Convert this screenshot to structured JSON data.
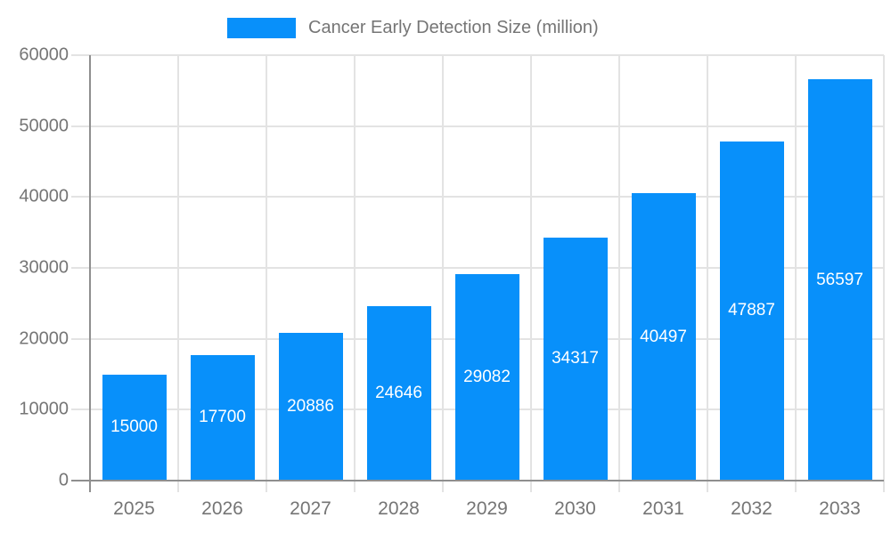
{
  "legend": {
    "label": "Cancer Early Detection Size (million)"
  },
  "chart_data": {
    "type": "bar",
    "title": "Cancer Early Detection Size (million)",
    "series_name": "Cancer Early Detection Size (million)",
    "categories": [
      "2025",
      "2026",
      "2027",
      "2028",
      "2029",
      "2030",
      "2031",
      "2032",
      "2033"
    ],
    "values": [
      15000,
      17700,
      20886,
      24646,
      29082,
      34317,
      40497,
      47887,
      56597
    ],
    "xlabel": "",
    "ylabel": "",
    "ylim": [
      0,
      60000
    ],
    "ytick_step": 10000,
    "ytick_labels": [
      "0",
      "10000",
      "20000",
      "30000",
      "40000",
      "50000",
      "60000"
    ],
    "grid": true,
    "legend_position": "top",
    "value_labels": "inside-center",
    "colors": {
      "bar": "#0890fa",
      "bar_value_text": "#ffffff",
      "axis_text": "#757575",
      "grid_line": "#e3e3e3",
      "axis_line": "#8f8f8f",
      "background": "#ffffff"
    }
  }
}
